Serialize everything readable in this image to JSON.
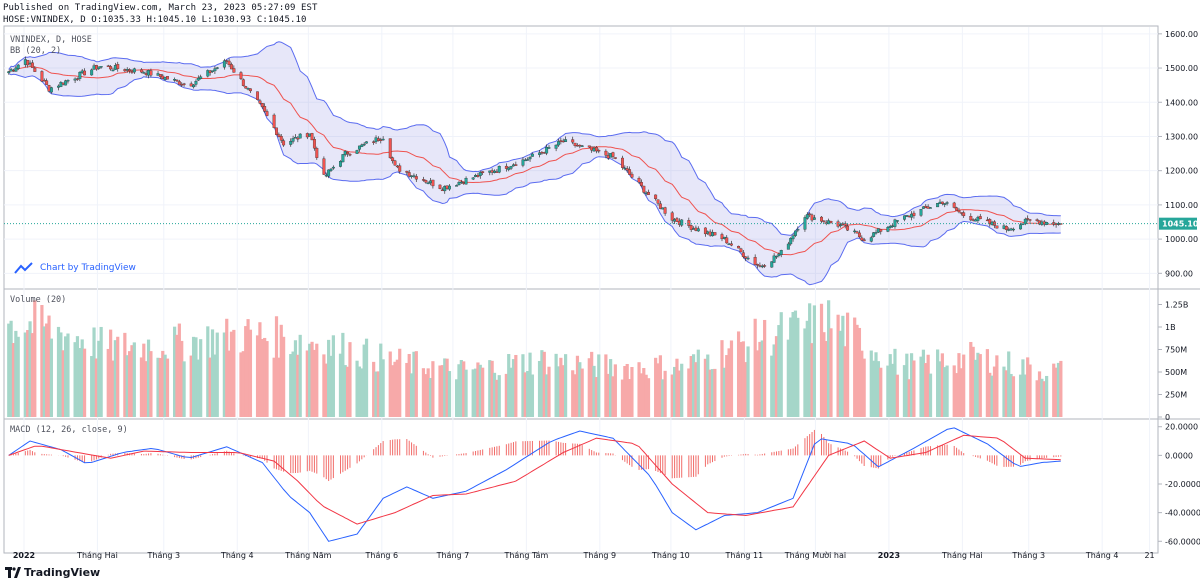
{
  "header": {
    "published": "Published on TradingView.com, March 23, 2023 05:27:09 EST",
    "ohlc": "HOSE:VNINDEX, D O:1035.33 H:1045.10 L:1030.93 C:1045.10"
  },
  "panes": {
    "price_title": "VNINDEX, D, HOSE",
    "bb_label": "BB (20, 2)",
    "volume_label": "Volume (20)",
    "macd_label": "MACD (12, 26, close, 9)"
  },
  "price_badge": "1045.10",
  "watermark": "Chart by TradingView",
  "brand": "TradingView",
  "colors": {
    "up": "#26a69a",
    "down": "#ef5350",
    "basis": "#ef5350",
    "band": "#5b6cf0",
    "band_fill": "#6a6ad8",
    "macd": "#2962ff",
    "signal": "#f23645",
    "vol_up": "#a5d6c9",
    "vol_down": "#f7a9a9",
    "hist_up": "#26a69a",
    "hist_down": "#ef5350",
    "last_price": "#26a69a"
  },
  "chart_data": [
    {
      "type": "line",
      "series_kind": "candlestick with Bollinger Bands",
      "title": "VNINDEX, D, HOSE",
      "ylim": [
        860,
        1620
      ],
      "y_ticks": [
        "1600.00",
        "1500.00",
        "1400.00",
        "1300.00",
        "1200.00",
        "1100.00",
        "1000.00",
        "900.00"
      ],
      "last_price": 1045.1,
      "x_range": [
        "2022-01-01",
        "2023-03-23"
      ],
      "key_closes": [
        {
          "date": "2022-01-03",
          "close": 1490
        },
        {
          "date": "2022-01-10",
          "close": 1525
        },
        {
          "date": "2022-01-20",
          "close": 1440
        },
        {
          "date": "2022-02-10",
          "close": 1505
        },
        {
          "date": "2022-03-01",
          "close": 1490
        },
        {
          "date": "2022-03-20",
          "close": 1450
        },
        {
          "date": "2022-04-05",
          "close": 1520
        },
        {
          "date": "2022-04-20",
          "close": 1380
        },
        {
          "date": "2022-04-29",
          "close": 1280
        },
        {
          "date": "2022-05-10",
          "close": 1310
        },
        {
          "date": "2022-05-16",
          "close": 1180
        },
        {
          "date": "2022-05-25",
          "close": 1250
        },
        {
          "date": "2022-06-10",
          "close": 1300
        },
        {
          "date": "2022-06-15",
          "close": 1210
        },
        {
          "date": "2022-07-05",
          "close": 1150
        },
        {
          "date": "2022-07-20",
          "close": 1185
        },
        {
          "date": "2022-08-10",
          "close": 1235
        },
        {
          "date": "2022-08-25",
          "close": 1285
        },
        {
          "date": "2022-09-15",
          "close": 1240
        },
        {
          "date": "2022-09-30",
          "close": 1130
        },
        {
          "date": "2022-10-10",
          "close": 1060
        },
        {
          "date": "2022-10-20",
          "close": 1030
        },
        {
          "date": "2022-11-01",
          "close": 1000
        },
        {
          "date": "2022-11-10",
          "close": 950
        },
        {
          "date": "2022-11-16",
          "close": 920
        },
        {
          "date": "2022-11-25",
          "close": 960
        },
        {
          "date": "2022-12-05",
          "close": 1070
        },
        {
          "date": "2022-12-20",
          "close": 1040
        },
        {
          "date": "2022-12-30",
          "close": 1000
        },
        {
          "date": "2023-01-15",
          "close": 1060
        },
        {
          "date": "2023-02-01",
          "close": 1110
        },
        {
          "date": "2023-02-10",
          "close": 1070
        },
        {
          "date": "2023-02-28",
          "close": 1030
        },
        {
          "date": "2023-03-10",
          "close": 1055
        },
        {
          "date": "2023-03-23",
          "close": 1045
        }
      ],
      "x_tick_labels": [
        "2022",
        "Tháng Hai",
        "Tháng 3",
        "Tháng 4",
        "Tháng Năm",
        "Tháng 6",
        "Tháng 7",
        "Tháng Tám",
        "Tháng 9",
        "Tháng 10",
        "Tháng 11",
        "Tháng Mười hai",
        "2023",
        "Tháng Hai",
        "Tháng 3",
        "Tháng 4",
        "21"
      ],
      "grid": true
    },
    {
      "type": "bar",
      "title": "Volume (20)",
      "ylim": [
        0,
        1400000000
      ],
      "y_ticks": [
        "1.25B",
        "1B",
        "750M",
        "500M",
        "250M",
        "0"
      ],
      "key_values": [
        {
          "period": "2022-01",
          "value": 1000000000
        },
        {
          "period": "2022-02",
          "value": 750000000
        },
        {
          "period": "2022-03",
          "value": 800000000
        },
        {
          "period": "2022-04",
          "value": 900000000
        },
        {
          "period": "2022-05",
          "value": 800000000
        },
        {
          "period": "2022-06",
          "value": 600000000
        },
        {
          "period": "2022-07",
          "value": 500000000
        },
        {
          "period": "2022-08",
          "value": 620000000
        },
        {
          "period": "2022-09",
          "value": 540000000
        },
        {
          "period": "2022-10",
          "value": 550000000
        },
        {
          "period": "2022-11",
          "value": 850000000
        },
        {
          "period": "2022-12",
          "value": 1050000000
        },
        {
          "period": "2023-01",
          "value": 550000000
        },
        {
          "period": "2023-02",
          "value": 650000000
        },
        {
          "period": "2023-03",
          "value": 500000000
        }
      ]
    },
    {
      "type": "line",
      "title": "MACD (12, 26, close, 9)",
      "ylim": [
        -64,
        24
      ],
      "y_ticks": [
        "20.0000",
        "0.0000",
        "-20.0000",
        "-40.0000",
        "-60.0000"
      ],
      "series": [
        {
          "name": "MACD",
          "points": [
            [
              "2022-01-03",
              0
            ],
            [
              "2022-01-12",
              10
            ],
            [
              "2022-01-25",
              4
            ],
            [
              "2022-02-05",
              -6
            ],
            [
              "2022-02-20",
              2
            ],
            [
              "2022-03-05",
              5
            ],
            [
              "2022-03-20",
              -2
            ],
            [
              "2022-04-05",
              6
            ],
            [
              "2022-04-20",
              -5
            ],
            [
              "2022-05-01",
              -28
            ],
            [
              "2022-05-10",
              -40
            ],
            [
              "2022-05-18",
              -60
            ],
            [
              "2022-05-30",
              -55
            ],
            [
              "2022-06-10",
              -30
            ],
            [
              "2022-06-20",
              -22
            ],
            [
              "2022-07-01",
              -30
            ],
            [
              "2022-07-15",
              -25
            ],
            [
              "2022-08-01",
              -10
            ],
            [
              "2022-08-20",
              10
            ],
            [
              "2022-09-01",
              17
            ],
            [
              "2022-09-15",
              12
            ],
            [
              "2022-10-01",
              -15
            ],
            [
              "2022-10-10",
              -40
            ],
            [
              "2022-10-20",
              -52
            ],
            [
              "2022-11-01",
              -42
            ],
            [
              "2022-11-15",
              -40
            ],
            [
              "2022-11-30",
              -30
            ],
            [
              "2022-12-10",
              12
            ],
            [
              "2022-12-25",
              8
            ],
            [
              "2023-01-05",
              -8
            ],
            [
              "2023-01-20",
              5
            ],
            [
              "2023-02-05",
              20
            ],
            [
              "2023-02-20",
              8
            ],
            [
              "2023-03-05",
              -8
            ],
            [
              "2023-03-15",
              -5
            ],
            [
              "2023-03-23",
              -4
            ]
          ]
        },
        {
          "name": "Signal",
          "points": [
            [
              "2022-01-03",
              0
            ],
            [
              "2022-01-15",
              7
            ],
            [
              "2022-02-01",
              2
            ],
            [
              "2022-02-15",
              -2
            ],
            [
              "2022-03-01",
              3
            ],
            [
              "2022-03-20",
              2
            ],
            [
              "2022-04-10",
              2
            ],
            [
              "2022-04-25",
              -4
            ],
            [
              "2022-05-05",
              -18
            ],
            [
              "2022-05-15",
              -35
            ],
            [
              "2022-05-30",
              -48
            ],
            [
              "2022-06-15",
              -40
            ],
            [
              "2022-07-01",
              -28
            ],
            [
              "2022-07-15",
              -27
            ],
            [
              "2022-08-05",
              -18
            ],
            [
              "2022-08-25",
              2
            ],
            [
              "2022-09-08",
              12
            ],
            [
              "2022-09-25",
              8
            ],
            [
              "2022-10-10",
              -20
            ],
            [
              "2022-10-25",
              -40
            ],
            [
              "2022-11-10",
              -42
            ],
            [
              "2022-11-30",
              -36
            ],
            [
              "2022-12-15",
              0
            ],
            [
              "2022-12-30",
              10
            ],
            [
              "2023-01-10",
              -2
            ],
            [
              "2023-01-25",
              2
            ],
            [
              "2023-02-10",
              14
            ],
            [
              "2023-02-25",
              12
            ],
            [
              "2023-03-08",
              -2
            ],
            [
              "2023-03-23",
              -3
            ]
          ]
        }
      ],
      "histogram": "MACD minus Signal, columns above/below zero"
    }
  ]
}
